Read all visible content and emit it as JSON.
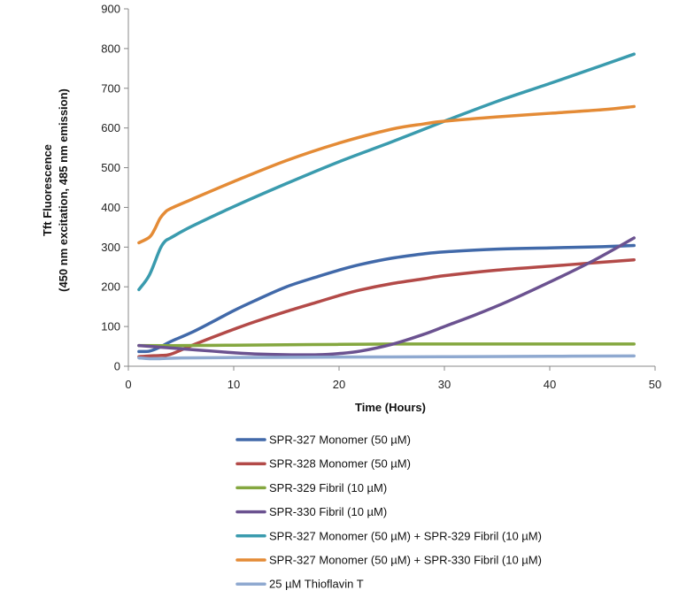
{
  "chart_data": {
    "type": "line",
    "title": "",
    "xlabel": "Time (Hours)",
    "ylabel_line1": "Tft Fluorescence",
    "ylabel_line2": "(450 nm excitation, 485 nm emission)",
    "xlim": [
      0,
      50
    ],
    "ylim": [
      0,
      900
    ],
    "xticks": [
      0,
      10,
      20,
      30,
      40,
      50
    ],
    "yticks": [
      0,
      100,
      200,
      300,
      400,
      500,
      600,
      700,
      800,
      900
    ],
    "grid": false,
    "legend_position": "bottom",
    "series": [
      {
        "name": "SPR-327 Monomer (50 µM)",
        "color": "#4169A9",
        "x": [
          1,
          2,
          3,
          4,
          6,
          8,
          10,
          12,
          15,
          18,
          20,
          22,
          25,
          28,
          30,
          35,
          40,
          45,
          48
        ],
        "y": [
          37,
          38,
          48,
          62,
          85,
          112,
          140,
          165,
          200,
          226,
          242,
          256,
          272,
          283,
          288,
          295,
          298,
          301,
          304
        ]
      },
      {
        "name": "SPR-328 Monomer (50 µM)",
        "color": "#B34A48",
        "x": [
          1,
          2,
          3,
          4,
          6,
          8,
          10,
          12,
          15,
          18,
          20,
          22,
          25,
          28,
          30,
          35,
          40,
          45,
          48
        ],
        "y": [
          24,
          26,
          27,
          30,
          52,
          73,
          93,
          112,
          138,
          162,
          178,
          192,
          208,
          220,
          228,
          242,
          252,
          262,
          268
        ]
      },
      {
        "name": "SPR-329 Fibril (10 µM)",
        "color": "#84A73F",
        "x": [
          1,
          5,
          10,
          15,
          20,
          25,
          30,
          35,
          40,
          45,
          48
        ],
        "y": [
          52,
          52,
          53,
          54,
          55,
          56,
          56,
          56,
          56,
          56,
          56
        ]
      },
      {
        "name": "SPR-330 Fibril (10 µM)",
        "color": "#6B5290",
        "x": [
          1,
          3,
          5,
          8,
          10,
          12,
          15,
          18,
          20,
          22,
          25,
          28,
          30,
          33,
          36,
          40,
          44,
          48
        ],
        "y": [
          52,
          48,
          44,
          38,
          34,
          31,
          29,
          29,
          32,
          38,
          55,
          80,
          100,
          130,
          163,
          212,
          264,
          323
        ]
      },
      {
        "name": "SPR-327 Monomer (50 µM) + SPR-329 Fibril (10 µM)",
        "color": "#3A9BAE",
        "x": [
          1,
          2,
          3,
          3.5,
          4,
          6,
          10,
          15,
          20,
          25,
          30,
          35,
          40,
          45,
          48
        ],
        "y": [
          193,
          230,
          295,
          315,
          323,
          352,
          402,
          460,
          515,
          565,
          617,
          667,
          712,
          758,
          786
        ]
      },
      {
        "name": "SPR-327 Monomer (50 µM) + SPR-330 Fibril (10 µM)",
        "color": "#E48B36",
        "x": [
          1,
          2,
          2.5,
          3,
          3.5,
          4,
          6,
          10,
          15,
          20,
          25,
          28,
          30,
          35,
          40,
          45,
          48
        ],
        "y": [
          311,
          325,
          345,
          372,
          388,
          397,
          420,
          465,
          518,
          562,
          597,
          610,
          617,
          628,
          637,
          646,
          654
        ]
      },
      {
        "name": "25 µM Thioflavin T",
        "color": "#8FA9D0",
        "x": [
          1,
          2,
          3,
          5,
          10,
          20,
          30,
          40,
          48
        ],
        "y": [
          21,
          19,
          19,
          21,
          22,
          23,
          24,
          25,
          26
        ]
      }
    ]
  }
}
